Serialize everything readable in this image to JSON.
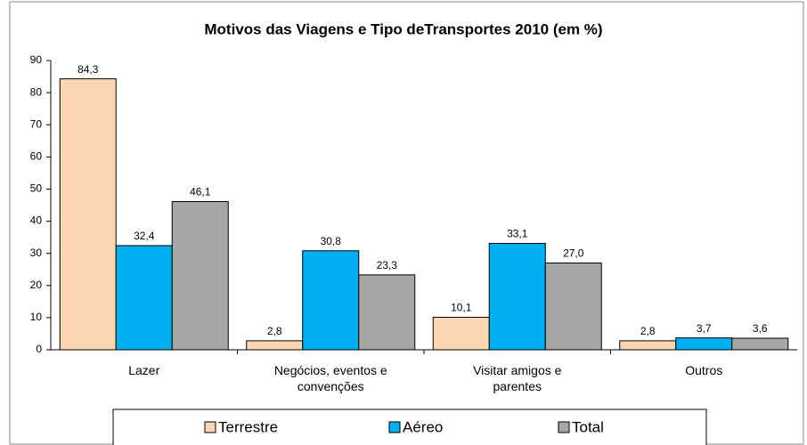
{
  "chart_data": {
    "type": "bar",
    "title": "Motivos das Viagens e Tipo deTransportes  2010 (em %)",
    "categories": [
      "Lazer",
      "Negócios, eventos e convenções",
      "Visitar amigos e parentes",
      "Outros"
    ],
    "series": [
      {
        "name": "Terrestre",
        "color": "#fcd5b5",
        "values": [
          84.3,
          2.8,
          10.1,
          2.8
        ],
        "value_labels": [
          "84,3",
          "2,8",
          "10,1",
          "2,8"
        ]
      },
      {
        "name": "Aéreo",
        "color": "#00b0f0",
        "values": [
          32.4,
          30.8,
          33.1,
          3.7
        ],
        "value_labels": [
          "32,4",
          "30,8",
          "33,1",
          "3,7"
        ]
      },
      {
        "name": "Total",
        "color": "#a6a6a6",
        "values": [
          46.1,
          23.3,
          27.0,
          3.6
        ],
        "value_labels": [
          "46,1",
          "23,3",
          "27,0",
          "3,6"
        ]
      }
    ],
    "ylim": [
      0,
      90
    ],
    "yticks": [
      0,
      10,
      20,
      30,
      40,
      50,
      60,
      70,
      80,
      90
    ],
    "legend": "bottom",
    "grid": false
  }
}
